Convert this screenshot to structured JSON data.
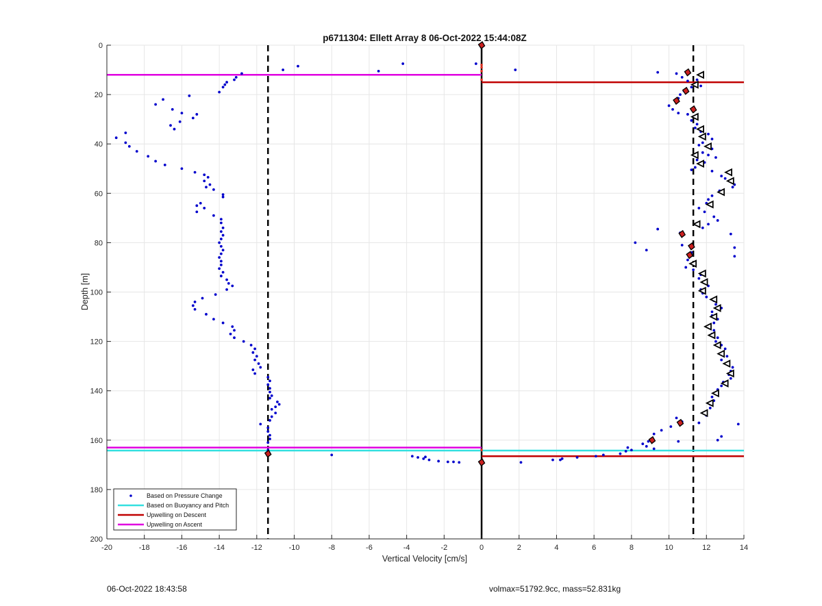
{
  "chart_data": {
    "type": "scatter",
    "title": "p6711304: Ellett Array 8 06-Oct-2022 15:44:08Z",
    "xlabel": "Vertical Velocity [cm/s]",
    "ylabel": "Depth [m]",
    "xlim": [
      -20,
      14
    ],
    "ylim": [
      0,
      200
    ],
    "y_reversed": true,
    "grid": true,
    "legend_placement": "bottom-left",
    "xticks": [
      -20,
      -18,
      -16,
      -14,
      -12,
      -10,
      -8,
      -6,
      -4,
      -2,
      0,
      2,
      4,
      6,
      8,
      10,
      12,
      14
    ],
    "yticks": [
      0,
      20,
      40,
      60,
      80,
      100,
      120,
      140,
      160,
      180,
      200
    ],
    "legend": [
      {
        "label": "Based on Pressure Change",
        "color": "#0000cc",
        "style": "dot"
      },
      {
        "label": "Based on Buoyancy and Pitch",
        "color": "#33e0e0",
        "style": "line"
      },
      {
        "label": "Upwelling on Descent",
        "color": "#c00000",
        "style": "line"
      },
      {
        "label": "Upwelling on Ascent",
        "color": "#e000e0",
        "style": "line"
      }
    ],
    "pressure_change_points": [
      [
        -12.8,
        11.5
      ],
      [
        -13.1,
        13
      ],
      [
        -13.2,
        14
      ],
      [
        -13.6,
        15
      ],
      [
        -13.7,
        16
      ],
      [
        -13.8,
        17
      ],
      [
        -14.0,
        19
      ],
      [
        -15.6,
        20.5
      ],
      [
        -17.0,
        22
      ],
      [
        -17.4,
        24
      ],
      [
        -16.5,
        26
      ],
      [
        -15.2,
        28
      ],
      [
        -16.0,
        27.5
      ],
      [
        -15.4,
        29.5
      ],
      [
        -16.1,
        31
      ],
      [
        -16.6,
        32.5
      ],
      [
        -16.4,
        34
      ],
      [
        -19.0,
        35.5
      ],
      [
        -19.5,
        37.5
      ],
      [
        -19.0,
        39.5
      ],
      [
        -18.8,
        41
      ],
      [
        -18.4,
        43
      ],
      [
        -17.8,
        45
      ],
      [
        -17.4,
        47
      ],
      [
        -16.9,
        48.5
      ],
      [
        -16.0,
        50
      ],
      [
        -15.3,
        51.5
      ],
      [
        -14.8,
        52.5
      ],
      [
        -14.6,
        53.5
      ],
      [
        -14.8,
        55
      ],
      [
        -14.5,
        56.5
      ],
      [
        -14.7,
        57.5
      ],
      [
        -14.3,
        58.5
      ],
      [
        -13.8,
        60.5
      ],
      [
        -13.8,
        61.5
      ],
      [
        -15.0,
        64
      ],
      [
        -15.2,
        65
      ],
      [
        -14.8,
        66
      ],
      [
        -15.2,
        67.5
      ],
      [
        -14.3,
        69
      ],
      [
        -13.9,
        70.5
      ],
      [
        -13.9,
        72
      ],
      [
        -13.8,
        74
      ],
      [
        -13.9,
        75.5
      ],
      [
        -13.8,
        77
      ],
      [
        -13.9,
        78.5
      ],
      [
        -14.0,
        80
      ],
      [
        -13.9,
        81.5
      ],
      [
        -13.8,
        83
      ],
      [
        -13.9,
        84.5
      ],
      [
        -14.0,
        86
      ],
      [
        -13.9,
        87.5
      ],
      [
        -13.9,
        89
      ],
      [
        -14.0,
        90.5
      ],
      [
        -13.8,
        92
      ],
      [
        -13.9,
        93.5
      ],
      [
        -13.6,
        95
      ],
      [
        -13.5,
        96.5
      ],
      [
        -13.3,
        97.5
      ],
      [
        -13.6,
        99
      ],
      [
        -14.2,
        101
      ],
      [
        -14.9,
        102.5
      ],
      [
        -15.3,
        104
      ],
      [
        -15.4,
        105.5
      ],
      [
        -15.3,
        107
      ],
      [
        -14.7,
        109
      ],
      [
        -14.3,
        111
      ],
      [
        -13.8,
        112.5
      ],
      [
        -13.3,
        114
      ],
      [
        -13.2,
        115.5
      ],
      [
        -13.4,
        117
      ],
      [
        -13.2,
        118.5
      ],
      [
        -12.7,
        120
      ],
      [
        -12.3,
        121.5
      ],
      [
        -12.1,
        123
      ],
      [
        -12.2,
        124.5
      ],
      [
        -12.0,
        126
      ],
      [
        -12.1,
        127.5
      ],
      [
        -11.9,
        129
      ],
      [
        -11.8,
        130.5
      ],
      [
        -12.2,
        131.5
      ],
      [
        -12.1,
        133
      ],
      [
        -11.4,
        134.5
      ],
      [
        -11.3,
        136
      ],
      [
        -11.4,
        137.5
      ],
      [
        -11.3,
        139
      ],
      [
        -11.3,
        140.5
      ],
      [
        -11.2,
        142
      ],
      [
        -11.3,
        143
      ],
      [
        -10.9,
        144.5
      ],
      [
        -10.8,
        145.5
      ],
      [
        -11.0,
        146.5
      ],
      [
        -11.2,
        147.5
      ],
      [
        -11.0,
        149
      ],
      [
        -11.2,
        150.5
      ],
      [
        -11.3,
        152
      ],
      [
        -11.8,
        153.5
      ],
      [
        -11.4,
        155
      ],
      [
        -11.4,
        156.5
      ],
      [
        -11.3,
        158
      ],
      [
        -11.3,
        159.5
      ],
      [
        -11.4,
        161
      ],
      [
        -11.4,
        164
      ],
      [
        -10.6,
        10
      ],
      [
        -9.8,
        8.5
      ],
      [
        -5.5,
        10.5
      ],
      [
        -4.2,
        7.5
      ],
      [
        -0.3,
        7.5
      ],
      [
        -8.0,
        166
      ],
      [
        -3.7,
        166.5
      ],
      [
        -3.4,
        167
      ],
      [
        -3.0,
        166.8
      ],
      [
        -3.1,
        167.5
      ],
      [
        -2.8,
        168
      ],
      [
        -2.3,
        168.5
      ],
      [
        -1.8,
        168.8
      ],
      [
        -1.5,
        168.8
      ],
      [
        -1.2,
        169
      ],
      [
        1.8,
        10
      ],
      [
        9.4,
        11
      ],
      [
        10.4,
        11.5
      ],
      [
        10.7,
        13
      ],
      [
        11.0,
        14.5
      ],
      [
        11.5,
        14
      ],
      [
        11.7,
        16.5
      ],
      [
        11.2,
        17
      ],
      [
        10.8,
        18.5
      ],
      [
        10.6,
        20
      ],
      [
        10.5,
        21.5
      ],
      [
        10.4,
        23
      ],
      [
        10.0,
        24.5
      ],
      [
        10.2,
        26
      ],
      [
        10.5,
        27.5
      ],
      [
        11.0,
        28
      ],
      [
        11.3,
        29
      ],
      [
        11.2,
        30.5
      ],
      [
        11.5,
        32
      ],
      [
        11.4,
        33.5
      ],
      [
        11.7,
        35
      ],
      [
        12.1,
        36
      ],
      [
        11.9,
        37
      ],
      [
        12.3,
        38
      ],
      [
        11.8,
        39.5
      ],
      [
        11.6,
        40.5
      ],
      [
        12.3,
        42
      ],
      [
        11.8,
        43.5
      ],
      [
        12.1,
        44.5
      ],
      [
        12.5,
        45.5
      ],
      [
        11.5,
        46.5
      ],
      [
        11.9,
        47.5
      ],
      [
        11.4,
        49.5
      ],
      [
        11.2,
        50.5
      ],
      [
        12.3,
        51
      ],
      [
        12.8,
        53
      ],
      [
        13.0,
        54
      ],
      [
        13.5,
        56.5
      ],
      [
        13.4,
        57.5
      ],
      [
        12.7,
        59
      ],
      [
        12.3,
        61
      ],
      [
        12.1,
        62.5
      ],
      [
        12.0,
        64
      ],
      [
        11.6,
        66
      ],
      [
        11.9,
        67.5
      ],
      [
        12.4,
        69.5
      ],
      [
        12.6,
        71
      ],
      [
        12.1,
        72.5
      ],
      [
        11.8,
        74
      ],
      [
        9.4,
        74.5
      ],
      [
        10.6,
        76
      ],
      [
        13.3,
        76.5
      ],
      [
        8.2,
        80
      ],
      [
        8.8,
        83
      ],
      [
        10.7,
        81
      ],
      [
        13.5,
        82
      ],
      [
        11.2,
        84
      ],
      [
        13.5,
        85.5
      ],
      [
        11.0,
        87
      ],
      [
        11.3,
        88.5
      ],
      [
        10.9,
        90
      ],
      [
        11.3,
        91
      ],
      [
        11.7,
        93
      ],
      [
        11.6,
        94.5
      ],
      [
        11.9,
        96
      ],
      [
        12.1,
        97.5
      ],
      [
        11.7,
        99
      ],
      [
        11.8,
        100.5
      ],
      [
        12.0,
        102
      ],
      [
        12.4,
        103.5
      ],
      [
        12.5,
        105
      ],
      [
        12.8,
        106.5
      ],
      [
        12.3,
        108
      ],
      [
        12.3,
        109.5
      ],
      [
        12.6,
        111
      ],
      [
        12.4,
        112.5
      ],
      [
        12.1,
        114
      ],
      [
        12.4,
        115.5
      ],
      [
        12.3,
        117
      ],
      [
        12.6,
        118.5
      ],
      [
        12.5,
        120
      ],
      [
        12.8,
        121.5
      ],
      [
        13.0,
        123
      ],
      [
        12.9,
        124.5
      ],
      [
        13.1,
        126
      ],
      [
        12.8,
        127.5
      ],
      [
        13.2,
        129
      ],
      [
        13.4,
        130.5
      ],
      [
        13.3,
        132
      ],
      [
        13.2,
        133.5
      ],
      [
        13.3,
        135
      ],
      [
        12.9,
        136.5
      ],
      [
        12.8,
        138
      ],
      [
        12.6,
        139.5
      ],
      [
        12.6,
        141
      ],
      [
        12.3,
        142.5
      ],
      [
        12.4,
        144
      ],
      [
        12.2,
        145.5
      ],
      [
        12.2,
        147
      ],
      [
        12.0,
        148.5
      ],
      [
        12.0,
        150
      ],
      [
        10.4,
        151
      ],
      [
        10.7,
        152.5
      ],
      [
        11.6,
        153
      ],
      [
        13.7,
        153.5
      ],
      [
        10.1,
        154.5
      ],
      [
        9.6,
        156
      ],
      [
        9.2,
        157.5
      ],
      [
        12.8,
        158.5
      ],
      [
        12.6,
        160
      ],
      [
        8.9,
        160.5
      ],
      [
        10.5,
        160.5
      ],
      [
        8.6,
        161.5
      ],
      [
        8.8,
        162.5
      ],
      [
        7.8,
        163
      ],
      [
        9.2,
        163.5
      ],
      [
        8.0,
        164
      ],
      [
        7.7,
        164.5
      ],
      [
        7.4,
        165.5
      ],
      [
        6.5,
        166
      ],
      [
        6.1,
        166.5
      ],
      [
        5.1,
        167
      ],
      [
        4.3,
        167.5
      ],
      [
        4.2,
        168
      ],
      [
        3.8,
        168
      ],
      [
        2.1,
        169
      ]
    ],
    "ascent_triangles_black": [
      [
        11.7,
        12
      ],
      [
        11.4,
        16
      ],
      [
        11.4,
        29
      ],
      [
        11.7,
        34
      ],
      [
        11.8,
        37
      ],
      [
        12.1,
        41
      ],
      [
        11.4,
        44.5
      ],
      [
        11.7,
        48
      ],
      [
        13.2,
        51.5
      ],
      [
        13.3,
        55
      ],
      [
        12.8,
        59.5
      ],
      [
        12.2,
        64.5
      ],
      [
        11.5,
        72.5
      ],
      [
        11.3,
        88.5
      ],
      [
        11.8,
        92.5
      ],
      [
        11.9,
        96
      ],
      [
        11.8,
        99.5
      ],
      [
        12.4,
        103
      ],
      [
        12.6,
        106.5
      ],
      [
        12.4,
        110
      ],
      [
        12.1,
        114
      ],
      [
        12.3,
        117.5
      ],
      [
        12.6,
        121.5
      ],
      [
        12.8,
        125
      ],
      [
        13.1,
        129
      ],
      [
        13.3,
        133
      ],
      [
        13.0,
        137
      ],
      [
        12.5,
        141
      ],
      [
        12.2,
        145
      ],
      [
        11.9,
        149
      ]
    ],
    "descent_markers_red": [
      [
        0,
        0
      ],
      [
        11.0,
        11
      ],
      [
        10.9,
        18.5
      ],
      [
        10.4,
        22.5
      ],
      [
        11.3,
        26
      ],
      [
        10.7,
        76.5
      ],
      [
        11.2,
        81.5
      ],
      [
        11.1,
        85
      ],
      [
        10.6,
        153
      ],
      [
        9.1,
        160
      ],
      [
        -11.4,
        165.5
      ],
      [
        0,
        169
      ]
    ],
    "vertical_lines": [
      {
        "x": -11.4,
        "style": "dashed",
        "color": "#000000"
      },
      {
        "x": 0,
        "style": "solid",
        "color": "#000000"
      },
      {
        "x": 11.3,
        "style": "dashed",
        "color": "#000000"
      }
    ],
    "horizontal_segments": [
      {
        "y": 12,
        "x_from": -20,
        "x_to": 0,
        "color": "#e000e0"
      },
      {
        "y": 15,
        "x_from": 0,
        "x_to": 14,
        "color": "#c00000"
      },
      {
        "y": 163,
        "x_from": -20,
        "x_to": 0,
        "color": "#e000e0"
      },
      {
        "y": 164.2,
        "x_from": -20,
        "x_to": 14,
        "color": "#33e0e0"
      },
      {
        "y": 166.5,
        "x_from": 0,
        "x_to": 14,
        "color": "#c00000"
      }
    ],
    "zero_line_points_red": [
      [
        0,
        8
      ],
      [
        0,
        9
      ],
      [
        0,
        10.5
      ],
      [
        0,
        14
      ],
      [
        0,
        164
      ]
    ]
  },
  "footer": {
    "timestamp": "06-Oct-2022 18:43:58",
    "specs": "volmax=51792.9cc, mass=52.831kg"
  }
}
